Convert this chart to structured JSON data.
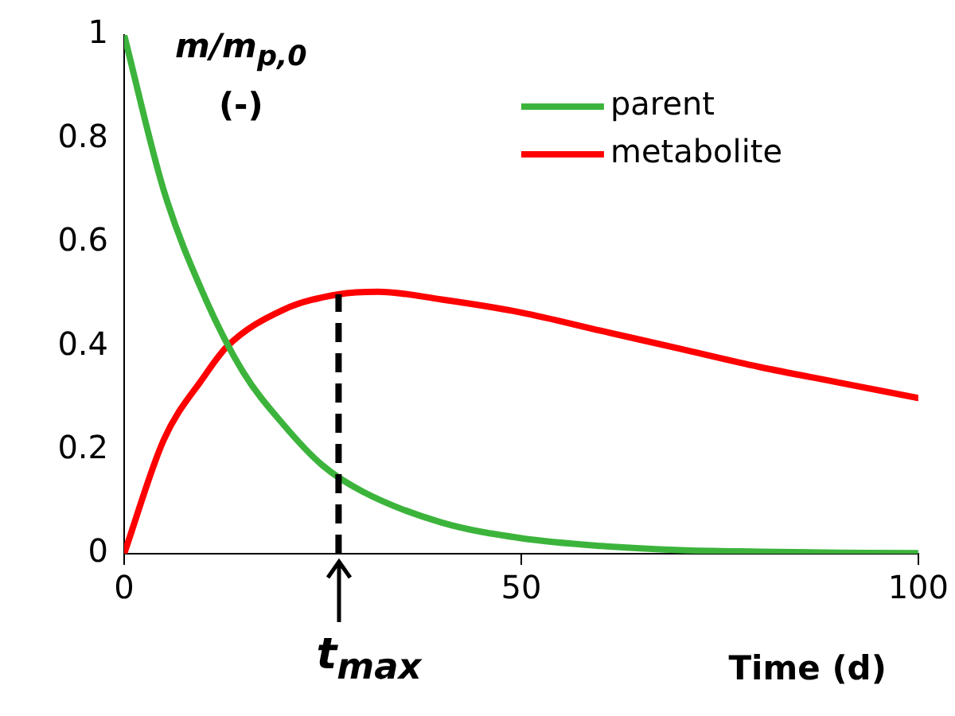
{
  "chart_data": {
    "type": "line",
    "xlabel": "Time (d)",
    "ylabel": "m/m$_{p,0}$ (-)",
    "xlim": [
      0,
      100
    ],
    "xticks": [
      0,
      50,
      100
    ],
    "ylim": [
      0,
      1
    ],
    "yticks": [
      0,
      0.2,
      0.4,
      0.6,
      0.8,
      1
    ],
    "grid": false,
    "legend": "top right",
    "marker": "none",
    "line_style": "solid",
    "series": [
      {
        "name": "parent",
        "color": "#3cb43c",
        "x": [
          0,
          5,
          10,
          15,
          20,
          25,
          30,
          40,
          50,
          60,
          70,
          80,
          90,
          100
        ],
        "values": [
          1,
          0.7,
          0.5,
          0.35,
          0.25,
          0.17,
          0.12,
          0.06,
          0.03,
          0.015,
          0.007,
          0.004,
          0.002,
          0.001
        ]
      },
      {
        "name": "metabolite",
        "color": "#ff0000",
        "x": [
          0,
          5,
          10,
          13,
          20,
          27,
          32,
          40,
          50,
          60,
          70,
          80,
          90,
          100
        ],
        "values": [
          0,
          0.22,
          0.34,
          0.4,
          0.47,
          0.5,
          0.505,
          0.49,
          0.465,
          0.43,
          0.395,
          0.36,
          0.33,
          0.3
        ]
      }
    ],
    "ref_lines": [
      {
        "axis": "x",
        "value": 27,
        "label": "t$_{max}$",
        "color": "#000000",
        "line_style": "dashed"
      }
    ]
  }
}
